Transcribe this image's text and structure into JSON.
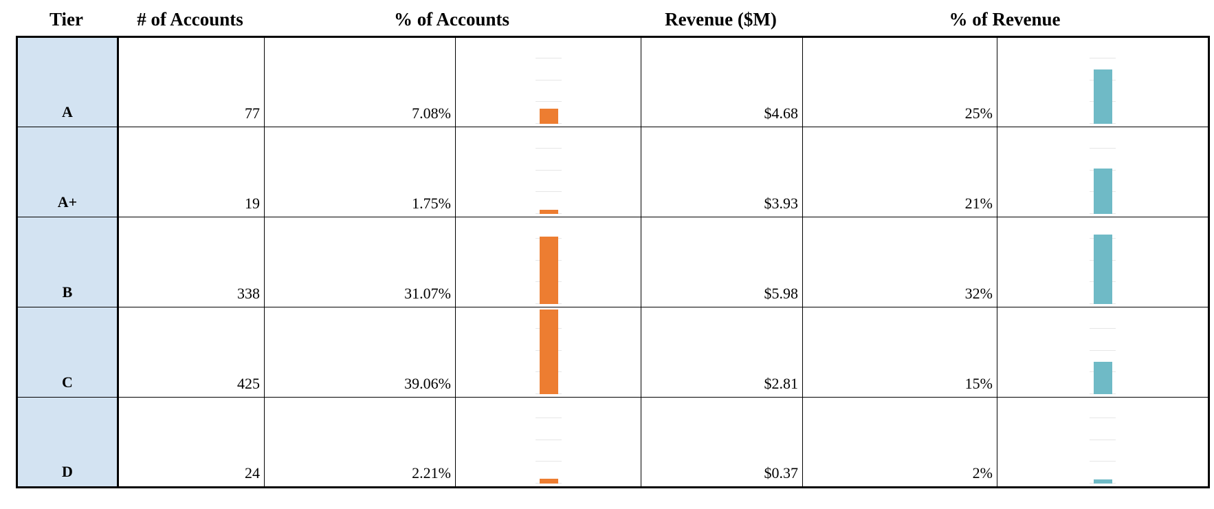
{
  "headers": {
    "tier": "Tier",
    "accounts": "# of Accounts",
    "pct_accounts": "% of Accounts",
    "revenue": "Revenue ($M)",
    "pct_revenue": "% of Revenue"
  },
  "colors": {
    "tier_bg": "#D3E3F2",
    "accounts_bar": "#ED7D31",
    "revenue_bar": "#6FBAC6"
  },
  "rows": [
    {
      "tier": "A",
      "accounts": "77",
      "pct_accounts": "7.08%",
      "pct_accounts_value": 7.08,
      "revenue": "$4.68",
      "pct_revenue": "25%",
      "pct_revenue_value": 25
    },
    {
      "tier": "A+",
      "accounts": "19",
      "pct_accounts": "1.75%",
      "pct_accounts_value": 1.75,
      "revenue": "$3.93",
      "pct_revenue": "21%",
      "pct_revenue_value": 21
    },
    {
      "tier": "B",
      "accounts": "338",
      "pct_accounts": "31.07%",
      "pct_accounts_value": 31.07,
      "revenue": "$5.98",
      "pct_revenue": "32%",
      "pct_revenue_value": 32
    },
    {
      "tier": "C",
      "accounts": "425",
      "pct_accounts": "39.06%",
      "pct_accounts_value": 39.06,
      "revenue": "$2.81",
      "pct_revenue": "15%",
      "pct_revenue_value": 15
    },
    {
      "tier": "D",
      "accounts": "24",
      "pct_accounts": "2.21%",
      "pct_accounts_value": 2.21,
      "revenue": "$0.37",
      "pct_revenue": "2%",
      "pct_revenue_value": 2
    }
  ]
}
